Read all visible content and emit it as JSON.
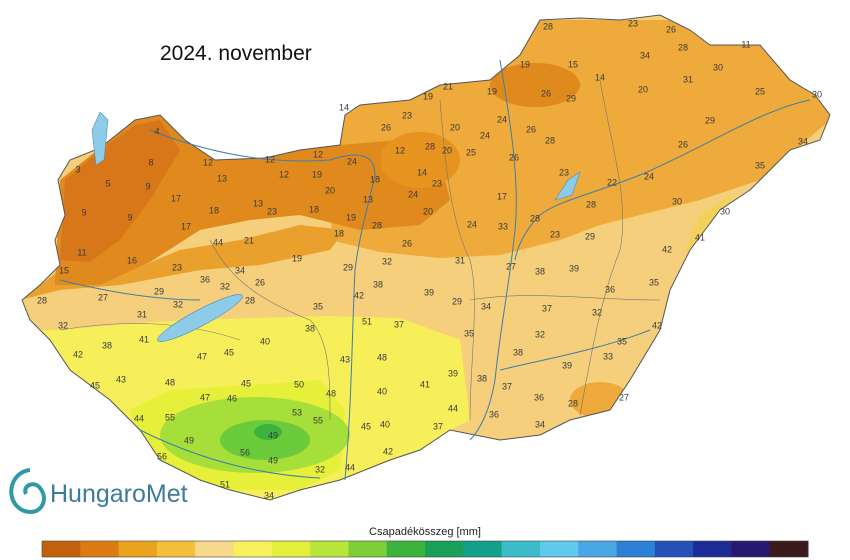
{
  "title": "2024. november",
  "logo": "HungaroMet",
  "colorbar": {
    "label": "Csapadékösszeg [mm]",
    "colors": [
      "#c2600c",
      "#dd7a12",
      "#eba21c",
      "#f3bf3c",
      "#f6d98a",
      "#f7f05c",
      "#e2f03c",
      "#b8e63a",
      "#7ed03a",
      "#3cb33c",
      "#18a058",
      "#12a08a",
      "#3bbcc8",
      "#62c9ee",
      "#48a8e6",
      "#2c80d6",
      "#2450b8",
      "#1c2c96",
      "#281870",
      "#3a1a1a"
    ]
  },
  "station_values": [
    28,
    23,
    26,
    34,
    28,
    11,
    15,
    19,
    14,
    30,
    20,
    31,
    21,
    19,
    26,
    29,
    19,
    25,
    30,
    14,
    23,
    29,
    26,
    20,
    24,
    26,
    28,
    24,
    4,
    26,
    34,
    28,
    12,
    20,
    25,
    8,
    12,
    12,
    12,
    24,
    26,
    35,
    3,
    5,
    9,
    13,
    12,
    19,
    18,
    14,
    23,
    23,
    22,
    24,
    17,
    20,
    17,
    28,
    30,
    30,
    24,
    13,
    9,
    9,
    18,
    13,
    23,
    18,
    19,
    28,
    20,
    24,
    33,
    28,
    23,
    29,
    17,
    44,
    21,
    18,
    26,
    42,
    41,
    11,
    16,
    23,
    19,
    29,
    32,
    31,
    27,
    38,
    39,
    15,
    36,
    34,
    32,
    26,
    38,
    35,
    28,
    27,
    29,
    32,
    28,
    35,
    42,
    39,
    29,
    34,
    37,
    36,
    31,
    32,
    51,
    37,
    32,
    42,
    38,
    35,
    32,
    41,
    40,
    35,
    42,
    38,
    47,
    45,
    43,
    48,
    38,
    33,
    45,
    43,
    48,
    45,
    50,
    48,
    40,
    41,
    39,
    38,
    37,
    39,
    47,
    46,
    36,
    28,
    27,
    44,
    55,
    53,
    55,
    44,
    37,
    36,
    34,
    49,
    49,
    45,
    40,
    56,
    56,
    49,
    42,
    32,
    44,
    51,
    34
  ]
}
